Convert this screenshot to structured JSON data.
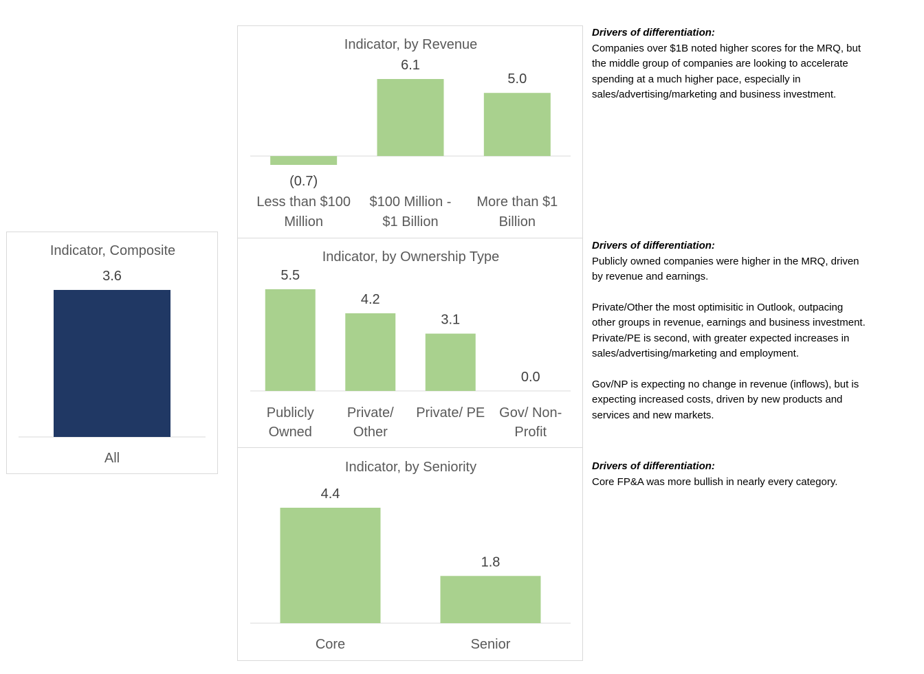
{
  "colors": {
    "composite_bar": "#203864",
    "group_bar": "#a9d18e",
    "axis": "#d9d9d9"
  },
  "chart_data": [
    {
      "id": "composite",
      "type": "bar",
      "title": "Indicator, Composite",
      "categories": [
        [
          "All"
        ]
      ],
      "values": [
        3.6
      ],
      "value_labels": [
        "3.6"
      ],
      "ylim": [
        0,
        3.6
      ],
      "grid": false,
      "legend": "none"
    },
    {
      "id": "revenue",
      "type": "bar",
      "title": "Indicator, by Revenue",
      "categories": [
        [
          "Less than $100",
          "Million"
        ],
        [
          "$100 Million -",
          "$1 Billion"
        ],
        [
          "More than $1",
          "Billion"
        ]
      ],
      "values": [
        -0.7,
        6.1,
        5.0
      ],
      "value_labels": [
        "(0.7)",
        "6.1",
        "5.0"
      ],
      "ylim": [
        -0.7,
        6.1
      ],
      "grid": false,
      "legend": "none"
    },
    {
      "id": "ownership",
      "type": "bar",
      "title": "Indicator, by Ownership Type",
      "categories": [
        [
          "Publicly",
          "Owned"
        ],
        [
          "Private/",
          "Other"
        ],
        [
          "Private/ PE"
        ],
        [
          "Gov/ Non-",
          "Profit"
        ]
      ],
      "values": [
        5.5,
        4.2,
        3.1,
        0.0
      ],
      "value_labels": [
        "5.5",
        "4.2",
        "3.1",
        "0.0"
      ],
      "ylim": [
        0,
        5.5
      ],
      "grid": false,
      "legend": "none"
    },
    {
      "id": "seniority",
      "type": "bar",
      "title": "Indicator, by Seniority",
      "categories": [
        [
          "Core"
        ],
        [
          "Senior"
        ]
      ],
      "values": [
        4.4,
        1.8
      ],
      "value_labels": [
        "4.4",
        "1.8"
      ],
      "ylim": [
        0,
        4.4
      ],
      "grid": false,
      "legend": "none"
    }
  ],
  "notes": [
    {
      "heading": "Drivers of differentiation:",
      "paragraphs": [
        "Companies over $1B noted higher scores for the MRQ, but the middle group of companies are looking to accelerate spending at a much higher pace, especially in sales/advertising/marketing and business investment."
      ]
    },
    {
      "heading": "Drivers of differentiation:",
      "paragraphs": [
        "Publicly owned companies were higher in the MRQ, driven by revenue and earnings.",
        "Private/Other the most optimisitic in Outlook, outpacing other groups in revenue, earnings and business investment. Private/PE is second, with greater expected increases in sales/advertising/marketing and employment.",
        "Gov/NP is expecting no change in revenue (inflows), but is expecting increased costs, driven by new products and services and new markets."
      ]
    },
    {
      "heading": "Drivers of differentiation:",
      "paragraphs": [
        "Core FP&A was more bullish in nearly every category."
      ]
    }
  ]
}
